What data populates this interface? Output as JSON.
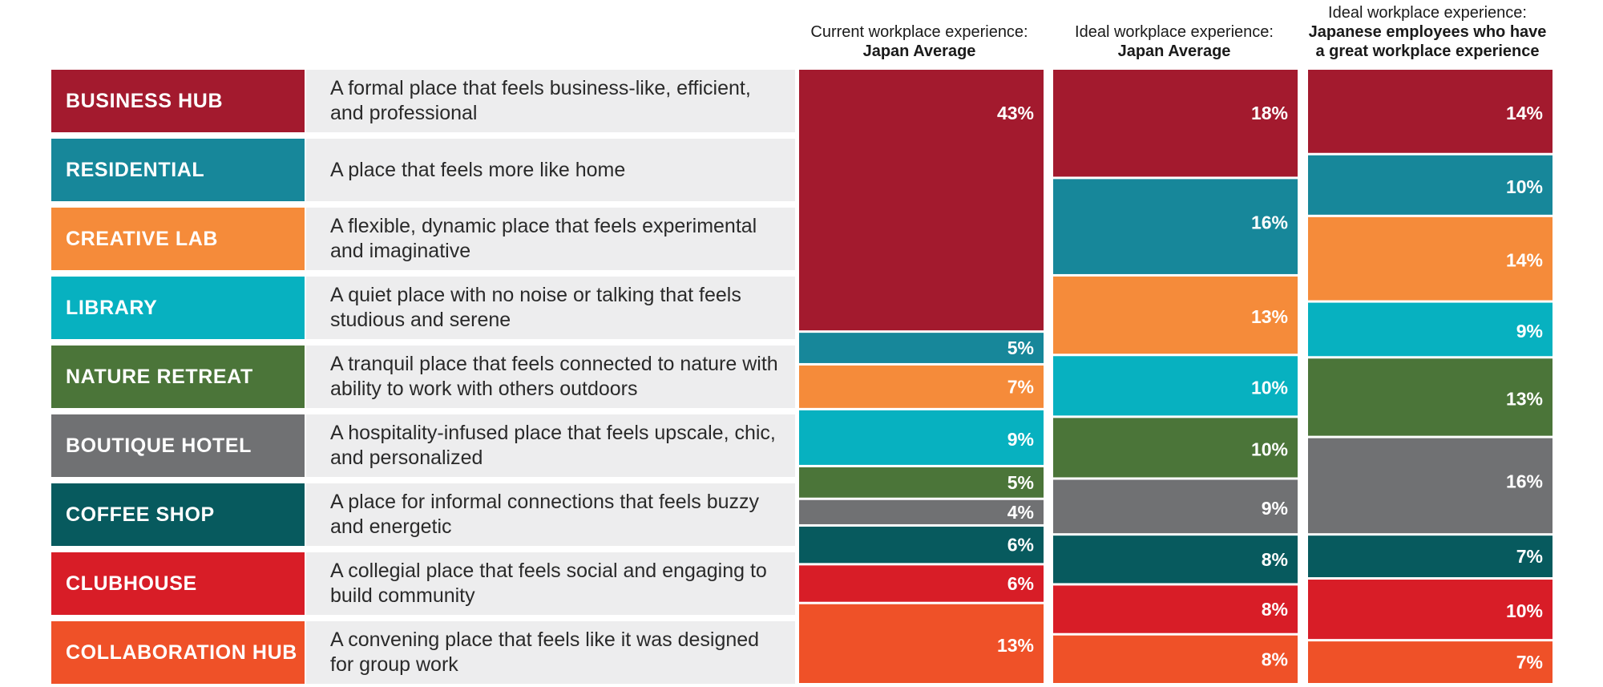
{
  "colors": {
    "business_hub": "#a31a2e",
    "residential": "#17879a",
    "creative_lab": "#f58b3a",
    "library": "#07b1c0",
    "nature_retreat": "#4b7539",
    "boutique_hotel": "#707173",
    "coffee_shop": "#075a5e",
    "clubhouse": "#d81d27",
    "collaboration_hub": "#ef5128"
  },
  "legend": [
    {
      "key": "business_hub",
      "label": "BUSINESS HUB",
      "description": "A formal place that feels business-like, efficient, and professional"
    },
    {
      "key": "residential",
      "label": "RESIDENTIAL",
      "description": "A place that feels more like home"
    },
    {
      "key": "creative_lab",
      "label": "CREATIVE LAB",
      "description": "A flexible, dynamic place that feels experimental and imaginative"
    },
    {
      "key": "library",
      "label": "LIBRARY",
      "description": "A quiet place with no noise or talking that feels studious and serene"
    },
    {
      "key": "nature_retreat",
      "label": "NATURE RETREAT",
      "description": "A tranquil place that feels connected to nature with ability to work with others outdoors"
    },
    {
      "key": "boutique_hotel",
      "label": "BOUTIQUE HOTEL",
      "description": "A hospitality-infused place that feels upscale, chic, and personalized"
    },
    {
      "key": "coffee_shop",
      "label": "COFFEE SHOP",
      "description": "A place for informal connections that feels buzzy and energetic"
    },
    {
      "key": "clubhouse",
      "label": "CLUBHOUSE",
      "description": "A collegial place that feels social and engaging to build community"
    },
    {
      "key": "collaboration_hub",
      "label": "COLLABORATION HUB",
      "description": "A convening place that feels like it was designed for group work"
    }
  ],
  "chart_data": {
    "type": "bar",
    "stacked": true,
    "orientation": "vertical-100-percent",
    "unit": "%",
    "categories": [
      "BUSINESS HUB",
      "RESIDENTIAL",
      "CREATIVE LAB",
      "LIBRARY",
      "NATURE RETREAT",
      "BOUTIQUE HOTEL",
      "COFFEE SHOP",
      "CLUBHOUSE",
      "COLLABORATION HUB"
    ],
    "series": [
      {
        "name": "Current workplace experience: Japan Average",
        "header_line1": "Current workplace experience:",
        "header_bold": "Japan Average",
        "values": [
          43,
          5,
          7,
          9,
          5,
          4,
          6,
          6,
          13
        ]
      },
      {
        "name": "Ideal workplace experience: Japan Average",
        "header_line1": "Ideal workplace experience:",
        "header_bold": "Japan Average",
        "values": [
          18,
          16,
          13,
          10,
          10,
          9,
          8,
          8,
          8
        ]
      },
      {
        "name": "Ideal workplace experience: Japanese employees who have a great workplace experience",
        "header_line1": "Ideal workplace experience:",
        "header_bold": "Japanese employees who have a great workplace experience",
        "values": [
          14,
          10,
          14,
          9,
          13,
          16,
          7,
          10,
          7
        ]
      }
    ]
  }
}
